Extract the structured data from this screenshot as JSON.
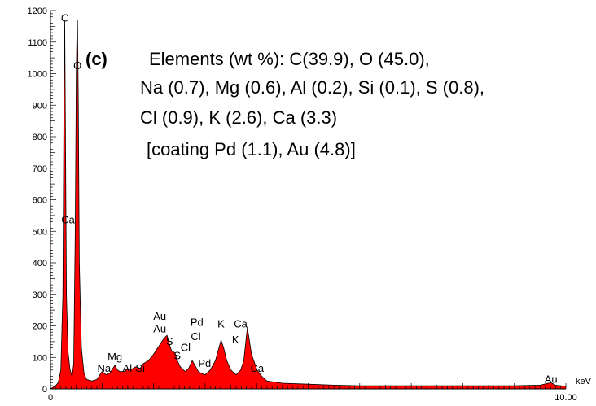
{
  "chart_data": {
    "type": "area",
    "title": "",
    "xlabel": "keV",
    "ylabel": "",
    "xlim": [
      0,
      10
    ],
    "ylim": [
      0,
      1200
    ],
    "x_tick_labels": [
      {
        "value": 0,
        "label": "0"
      },
      {
        "value": 10,
        "label": "10.00"
      }
    ],
    "y_tick_labels": [
      {
        "value": 0,
        "label": "0"
      },
      {
        "value": 100,
        "label": "100"
      },
      {
        "value": 200,
        "label": "200"
      },
      {
        "value": 300,
        "label": "300"
      },
      {
        "value": 400,
        "label": "400"
      },
      {
        "value": 500,
        "label": "500"
      },
      {
        "value": 600,
        "label": "600"
      },
      {
        "value": 700,
        "label": "700"
      },
      {
        "value": 800,
        "label": "800"
      },
      {
        "value": 900,
        "label": "900"
      },
      {
        "value": 1000,
        "label": "1000"
      },
      {
        "value": 1100,
        "label": "1100"
      },
      {
        "value": 1200,
        "label": "1200"
      }
    ],
    "grid": false,
    "fill_color": "#ff0000",
    "line_color": "#000000",
    "series": [
      {
        "x": [
          0.0,
          0.1,
          0.15,
          0.2,
          0.24,
          0.26,
          0.277,
          0.29,
          0.31,
          0.34,
          0.38,
          0.42,
          0.45,
          0.48,
          0.5,
          0.51,
          0.525,
          0.54,
          0.56,
          0.6,
          0.65,
          0.7,
          0.8,
          0.9,
          1.0,
          1.04,
          1.08,
          1.15,
          1.25,
          1.3,
          1.35,
          1.45,
          1.49,
          1.55,
          1.65,
          1.74,
          1.8,
          1.9,
          2.0,
          2.1,
          2.2,
          2.26,
          2.31,
          2.35,
          2.41,
          2.46,
          2.52,
          2.58,
          2.62,
          2.68,
          2.75,
          2.82,
          2.87,
          2.92,
          3.0,
          3.1,
          3.2,
          3.31,
          3.36,
          3.42,
          3.5,
          3.6,
          3.69,
          3.75,
          3.82,
          3.9,
          4.01,
          4.1,
          4.2,
          4.5,
          5.0,
          5.5,
          6.0,
          6.5,
          7.0,
          7.5,
          8.0,
          8.5,
          9.0,
          9.5,
          9.71,
          9.8,
          10.0
        ],
        "y": [
          0,
          10,
          20,
          60,
          300,
          900,
          1170,
          800,
          300,
          120,
          60,
          40,
          80,
          500,
          1000,
          1100,
          1170,
          900,
          400,
          130,
          50,
          30,
          25,
          30,
          55,
          50,
          45,
          50,
          75,
          60,
          55,
          55,
          65,
          60,
          70,
          65,
          80,
          90,
          110,
          135,
          160,
          170,
          140,
          120,
          115,
          90,
          70,
          60,
          55,
          65,
          90,
          70,
          55,
          50,
          45,
          60,
          90,
          155,
          130,
          90,
          60,
          45,
          60,
          90,
          195,
          110,
          60,
          40,
          25,
          18,
          15,
          12,
          10,
          10,
          10,
          10,
          10,
          10,
          10,
          12,
          20,
          12,
          8
        ]
      }
    ],
    "peak_labels": [
      {
        "text": "C",
        "x": 0.277,
        "y": 1170
      },
      {
        "text": "O",
        "x": 0.525,
        "y": 1020
      },
      {
        "text": "Ca",
        "x": 0.341,
        "y": 530
      },
      {
        "text": "Na",
        "x": 1.04,
        "y": 60
      },
      {
        "text": "Mg",
        "x": 1.25,
        "y": 95
      },
      {
        "text": "Al",
        "x": 1.49,
        "y": 60
      },
      {
        "text": "Si",
        "x": 1.74,
        "y": 60
      },
      {
        "text": "Au",
        "x": 2.12,
        "y": 225
      },
      {
        "text": "Au",
        "x": 2.12,
        "y": 185
      },
      {
        "text": "S",
        "x": 2.31,
        "y": 145
      },
      {
        "text": "S",
        "x": 2.46,
        "y": 100
      },
      {
        "text": "Cl",
        "x": 2.62,
        "y": 125
      },
      {
        "text": "Pd",
        "x": 2.84,
        "y": 205
      },
      {
        "text": "Cl",
        "x": 2.82,
        "y": 160
      },
      {
        "text": "Pd",
        "x": 2.99,
        "y": 75
      },
      {
        "text": "K",
        "x": 3.31,
        "y": 200
      },
      {
        "text": "K",
        "x": 3.59,
        "y": 150
      },
      {
        "text": "Ca",
        "x": 3.69,
        "y": 200
      },
      {
        "text": "Ca",
        "x": 4.01,
        "y": 60
      },
      {
        "text": "Au",
        "x": 9.71,
        "y": 25
      }
    ],
    "annotations": {
      "panel_tag": "(c)",
      "lines": [
        "Elements (wt %): C(39.9), O (45.0),",
        "Na (0.7), Mg (0.6), Al (0.2), Si (0.1), S (0.8),",
        "Cl (0.9), K (2.6), Ca (3.3)",
        "[coating Pd (1.1), Au (4.8)]"
      ]
    }
  }
}
